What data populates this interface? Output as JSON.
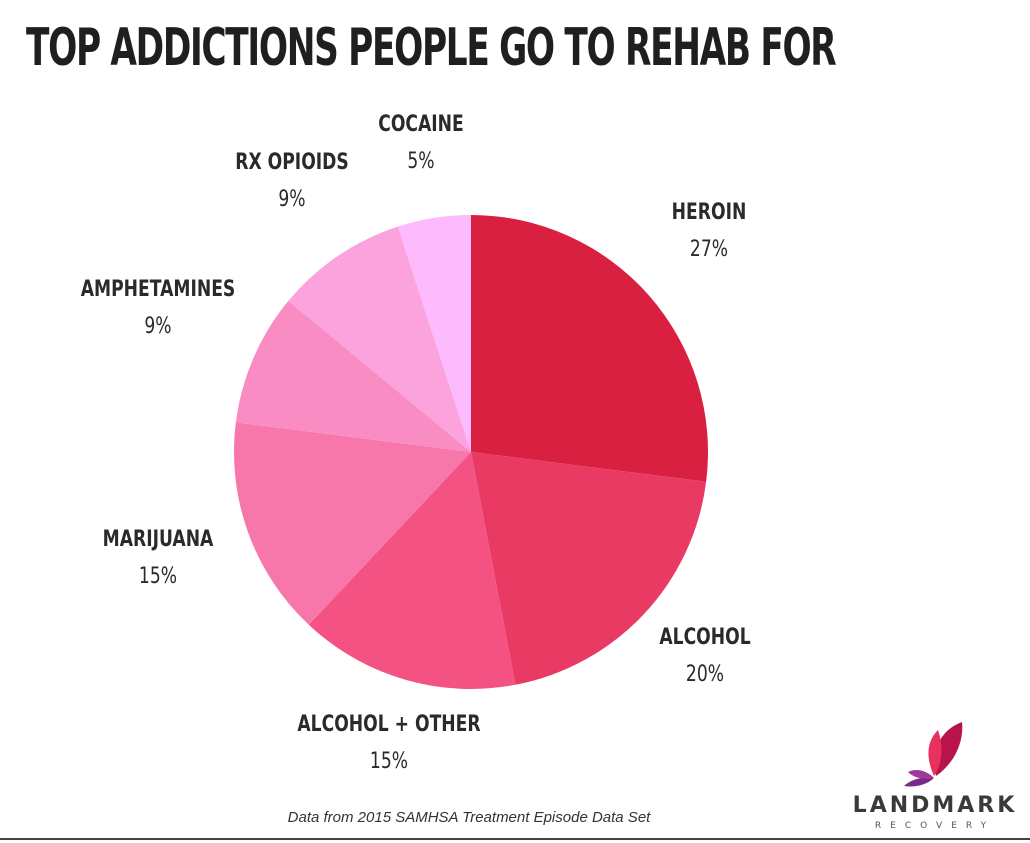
{
  "chart_data": {
    "type": "pie",
    "title": "TOP ADDICTIONS PEOPLE GO TO REHAB FOR",
    "start_angle_deg": 0,
    "direction": "clockwise",
    "slices": [
      {
        "label": "HEROIN",
        "value": 27,
        "value_label": "27%",
        "color": "#d92040"
      },
      {
        "label": "ALCOHOL",
        "value": 20,
        "value_label": "20%",
        "color": "#e83a62"
      },
      {
        "label": "ALCOHOL + OTHER",
        "value": 15,
        "value_label": "15%",
        "color": "#f45283"
      },
      {
        "label": "MARIJUANA",
        "value": 15,
        "value_label": "15%",
        "color": "#f877aa"
      },
      {
        "label": "AMPHETAMINES",
        "value": 9,
        "value_label": "9%",
        "color": "#fa8cc4"
      },
      {
        "label": "RX OPIOIDS",
        "value": 9,
        "value_label": "9%",
        "color": "#fca2dd"
      },
      {
        "label": "COCAINE",
        "value": 5,
        "value_label": "5%",
        "color": "#fdbafd"
      }
    ]
  },
  "footer": {
    "source": "Data from 2015 SAMHSA Treatment Episode Data Set"
  },
  "logo": {
    "name": "LANDMARK",
    "sub": "RECOVERY",
    "icon": "butterfly-icon",
    "colors": [
      "#b8134a",
      "#e8325d",
      "#7b2a8c"
    ]
  }
}
